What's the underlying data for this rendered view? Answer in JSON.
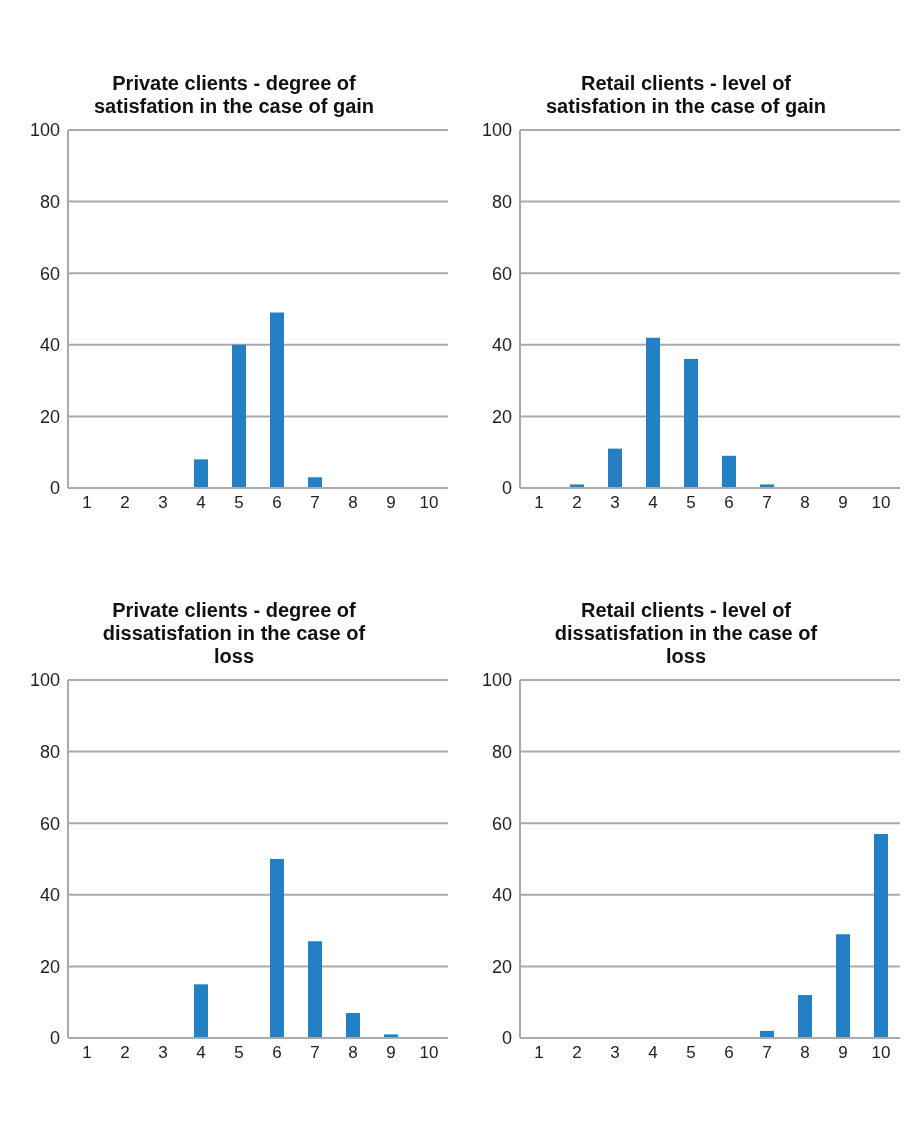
{
  "chart_data": [
    {
      "type": "bar",
      "title": "Private clients - degree of satisfation in the case of gain",
      "categories": [
        "1",
        "2",
        "3",
        "4",
        "5",
        "6",
        "7",
        "8",
        "9",
        "10"
      ],
      "values": [
        0,
        0,
        0,
        8,
        40,
        49,
        3,
        0,
        0,
        0
      ],
      "color": "#2580c3",
      "ylim": [
        0,
        100
      ],
      "yticks": [
        0,
        20,
        40,
        60,
        80,
        100
      ],
      "grid": "y"
    },
    {
      "type": "bar",
      "title": "Retail clients - level of satisfation in the case of gain",
      "categories": [
        "1",
        "2",
        "3",
        "4",
        "5",
        "6",
        "7",
        "8",
        "9",
        "10"
      ],
      "values": [
        0,
        1,
        11,
        42,
        36,
        9,
        1,
        0,
        0,
        0
      ],
      "color": "#2580c3",
      "ylim": [
        0,
        100
      ],
      "yticks": [
        0,
        20,
        40,
        60,
        80,
        100
      ],
      "grid": "y"
    },
    {
      "type": "bar",
      "title": "Private clients - degree of dissatisfation in the case of loss",
      "categories": [
        "1",
        "2",
        "3",
        "4",
        "5",
        "6",
        "7",
        "8",
        "9",
        "10"
      ],
      "values": [
        0,
        0,
        0,
        15,
        0,
        50,
        27,
        7,
        1,
        0
      ],
      "color": "#2580c3",
      "ylim": [
        0,
        100
      ],
      "yticks": [
        0,
        20,
        40,
        60,
        80,
        100
      ],
      "grid": "y"
    },
    {
      "type": "bar",
      "title": "Retail clients - level of dissatisfation in the case of loss",
      "categories": [
        "1",
        "2",
        "3",
        "4",
        "5",
        "6",
        "7",
        "8",
        "9",
        "10"
      ],
      "values": [
        0,
        0,
        0,
        0,
        0,
        0,
        2,
        12,
        29,
        57
      ],
      "color": "#2580c3",
      "ylim": [
        0,
        100
      ],
      "yticks": [
        0,
        20,
        40,
        60,
        80,
        100
      ],
      "grid": "y"
    }
  ]
}
